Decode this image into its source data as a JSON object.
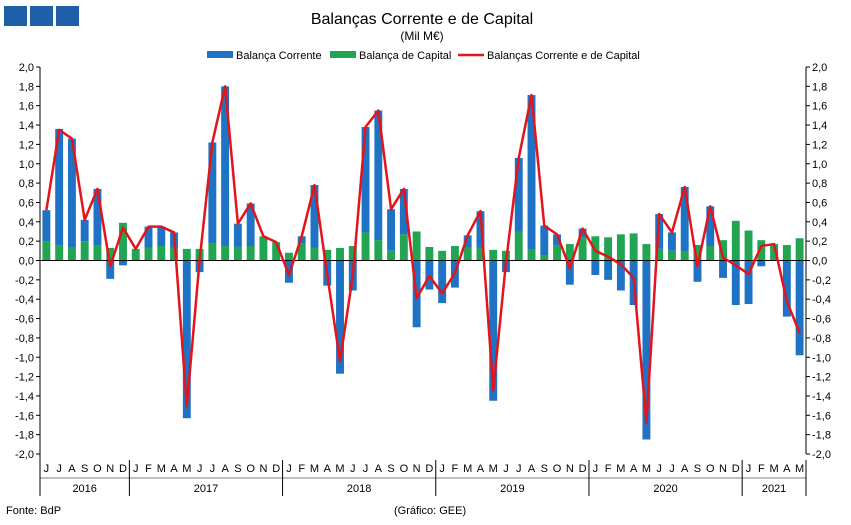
{
  "logo": {
    "name": "logo-icon",
    "colors": [
      "#1f5fa8",
      "#1f5fa8",
      "#1f5fa8"
    ]
  },
  "footer": {
    "source": "Fonte: BdP",
    "credit": "(Gráfico: GEE)"
  },
  "chart_data": {
    "type": "bar",
    "title": "Balanças Corrente e de Capital",
    "subtitle": "(Mil M€)",
    "ylim": [
      -2.0,
      2.0
    ],
    "yticks": [
      "2,0",
      "1,8",
      "1,6",
      "1,4",
      "1,2",
      "1,0",
      "0,8",
      "0,6",
      "0,4",
      "0,2",
      "0,0",
      "-0,2",
      "-0,4",
      "-0,6",
      "-0,8",
      "-1,0",
      "-1,2",
      "-1,4",
      "-1,6",
      "-1,8",
      "-2,0"
    ],
    "legend": {
      "placement": "top-center"
    },
    "months": [
      "J",
      "J",
      "A",
      "S",
      "O",
      "N",
      "D",
      "J",
      "F",
      "M",
      "A",
      "M",
      "J",
      "J",
      "A",
      "S",
      "O",
      "N",
      "D",
      "J",
      "F",
      "M",
      "A",
      "M",
      "J",
      "J",
      "A",
      "S",
      "O",
      "N",
      "D",
      "J",
      "F",
      "M",
      "A",
      "M",
      "J",
      "J",
      "A",
      "S",
      "O",
      "N",
      "D",
      "J",
      "F",
      "M",
      "A",
      "M",
      "J",
      "J",
      "A",
      "S",
      "O",
      "N",
      "D",
      "J",
      "F",
      "M",
      "A",
      "M"
    ],
    "years": [
      {
        "label": "2016",
        "start": 0,
        "count": 7
      },
      {
        "label": "2017",
        "start": 7,
        "count": 12
      },
      {
        "label": "2018",
        "start": 19,
        "count": 12
      },
      {
        "label": "2019",
        "start": 31,
        "count": 12
      },
      {
        "label": "2020",
        "start": 43,
        "count": 12
      },
      {
        "label": "2021",
        "start": 55,
        "count": 5
      }
    ],
    "series": [
      {
        "name": "Balança Corrente",
        "type": "bar",
        "color": "#1f73c4",
        "values": [
          0.32,
          1.2,
          1.12,
          0.22,
          0.58,
          -0.19,
          -0.05,
          0.0,
          0.22,
          0.2,
          0.16,
          -1.63,
          -0.12,
          1.04,
          1.65,
          0.24,
          0.44,
          0.0,
          0.0,
          -0.23,
          0.07,
          0.65,
          -0.26,
          -1.17,
          -0.31,
          1.09,
          1.34,
          0.43,
          0.47,
          -0.69,
          -0.3,
          -0.44,
          -0.28,
          0.13,
          0.38,
          -1.45,
          -0.12,
          0.76,
          1.6,
          0.31,
          0.11,
          -0.25,
          0.09,
          -0.15,
          -0.2,
          -0.31,
          -0.46,
          -1.85,
          0.36,
          0.19,
          0.67,
          -0.22,
          0.41,
          -0.18,
          -0.46,
          -0.45,
          -0.06,
          0.0,
          -0.58,
          -0.98
        ]
      },
      {
        "name": "Balança de Capital",
        "type": "bar",
        "color": "#21a553",
        "values": [
          0.2,
          0.16,
          0.14,
          0.2,
          0.16,
          0.13,
          0.39,
          0.12,
          0.13,
          0.15,
          0.13,
          0.12,
          0.12,
          0.18,
          0.15,
          0.14,
          0.15,
          0.25,
          0.19,
          0.08,
          0.18,
          0.13,
          0.11,
          0.13,
          0.15,
          0.29,
          0.21,
          0.1,
          0.27,
          0.3,
          0.14,
          0.1,
          0.15,
          0.13,
          0.13,
          0.11,
          0.1,
          0.3,
          0.11,
          0.05,
          0.16,
          0.17,
          0.24,
          0.25,
          0.24,
          0.27,
          0.28,
          0.17,
          0.12,
          0.1,
          0.09,
          0.16,
          0.15,
          0.21,
          0.41,
          0.31,
          0.21,
          0.17,
          0.16,
          0.23
        ]
      },
      {
        "name": "Balanças Corrente e de Capital",
        "type": "line",
        "color": "#e3141b",
        "values": [
          0.52,
          1.35,
          1.26,
          0.42,
          0.74,
          -0.06,
          0.34,
          0.12,
          0.35,
          0.35,
          0.29,
          -1.51,
          0.0,
          1.22,
          1.8,
          0.38,
          0.59,
          0.25,
          0.19,
          -0.15,
          0.25,
          0.78,
          -0.15,
          -1.04,
          -0.16,
          1.38,
          1.55,
          0.53,
          0.74,
          -0.39,
          -0.16,
          -0.34,
          -0.13,
          0.26,
          0.51,
          -1.34,
          -0.02,
          1.06,
          1.71,
          0.36,
          0.27,
          -0.08,
          0.33,
          0.1,
          0.04,
          -0.04,
          -0.18,
          -1.68,
          0.48,
          0.29,
          0.76,
          -0.06,
          0.56,
          0.03,
          -0.05,
          -0.14,
          0.15,
          0.17,
          -0.42,
          -0.75
        ]
      }
    ]
  }
}
